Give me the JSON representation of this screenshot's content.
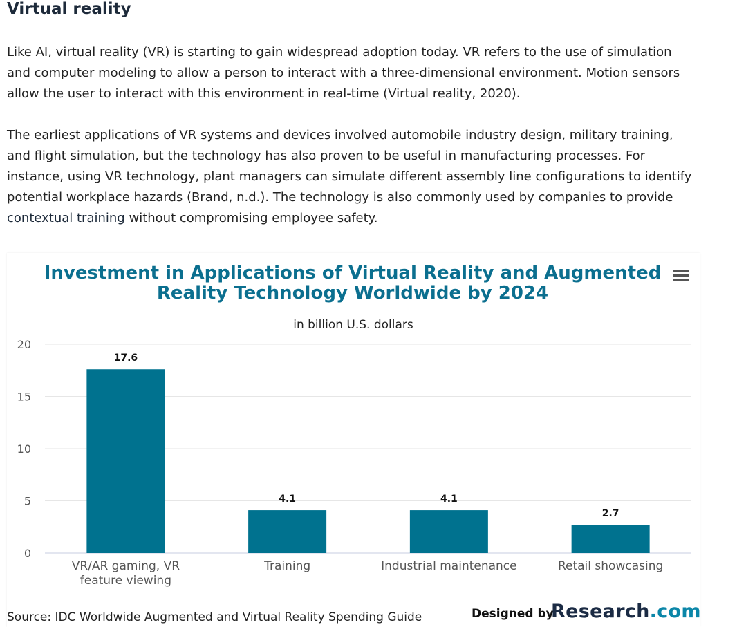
{
  "article": {
    "heading": "Virtual reality",
    "paragraph1": "Like AI, virtual reality (VR) is starting to gain widespread adoption today. VR refers to the use of simulation and computer modeling to allow a person to interact with a three-dimensional environment. Motion sensors allow the user to interact with this environment in real-time (Virtual reality, 2020).",
    "paragraph2_before_link": "The earliest applications of VR systems and devices involved automobile industry design, military training, and flight simulation, but the technology has also proven to be useful in manufacturing processes. For instance, using VR technology, plant managers can simulate different assembly line configurations to identify potential workplace hazards (Brand, n.d.). The technology is also commonly used by companies to provide ",
    "link_text": "contextual training",
    "paragraph2_after_link": " without compromising employee safety."
  },
  "chart_data": {
    "type": "bar",
    "title": "Investment in Applications of Virtual Reality and Augmented Reality Technology Worldwide by 2024",
    "subtitle": "in billion U.S. dollars",
    "categories": [
      "VR/AR gaming, VR feature viewing",
      "Training",
      "Industrial maintenance",
      "Retail showcasing"
    ],
    "category_lines": [
      [
        "VR/AR gaming, VR",
        "feature viewing"
      ],
      [
        "Training"
      ],
      [
        "Industrial maintenance"
      ],
      [
        "Retail showcasing"
      ]
    ],
    "values": [
      17.6,
      4.1,
      4.1,
      2.7
    ],
    "data_labels": [
      "17.6",
      "4.1",
      "4.1",
      "2.7"
    ],
    "ylim": [
      0,
      20
    ],
    "yticks": [
      0,
      5,
      10,
      15,
      20
    ],
    "grid": true,
    "bar_color": "#00728f",
    "title_color": "#0b6f8f"
  },
  "chart_menu_icon": "hamburger-menu-icon",
  "footer": {
    "source": "Source: IDC Worldwide Augmented and Virtual Reality Spending Guide",
    "designed_by": "Designed by",
    "brand_name": "Research",
    "brand_suffix": ".com"
  }
}
